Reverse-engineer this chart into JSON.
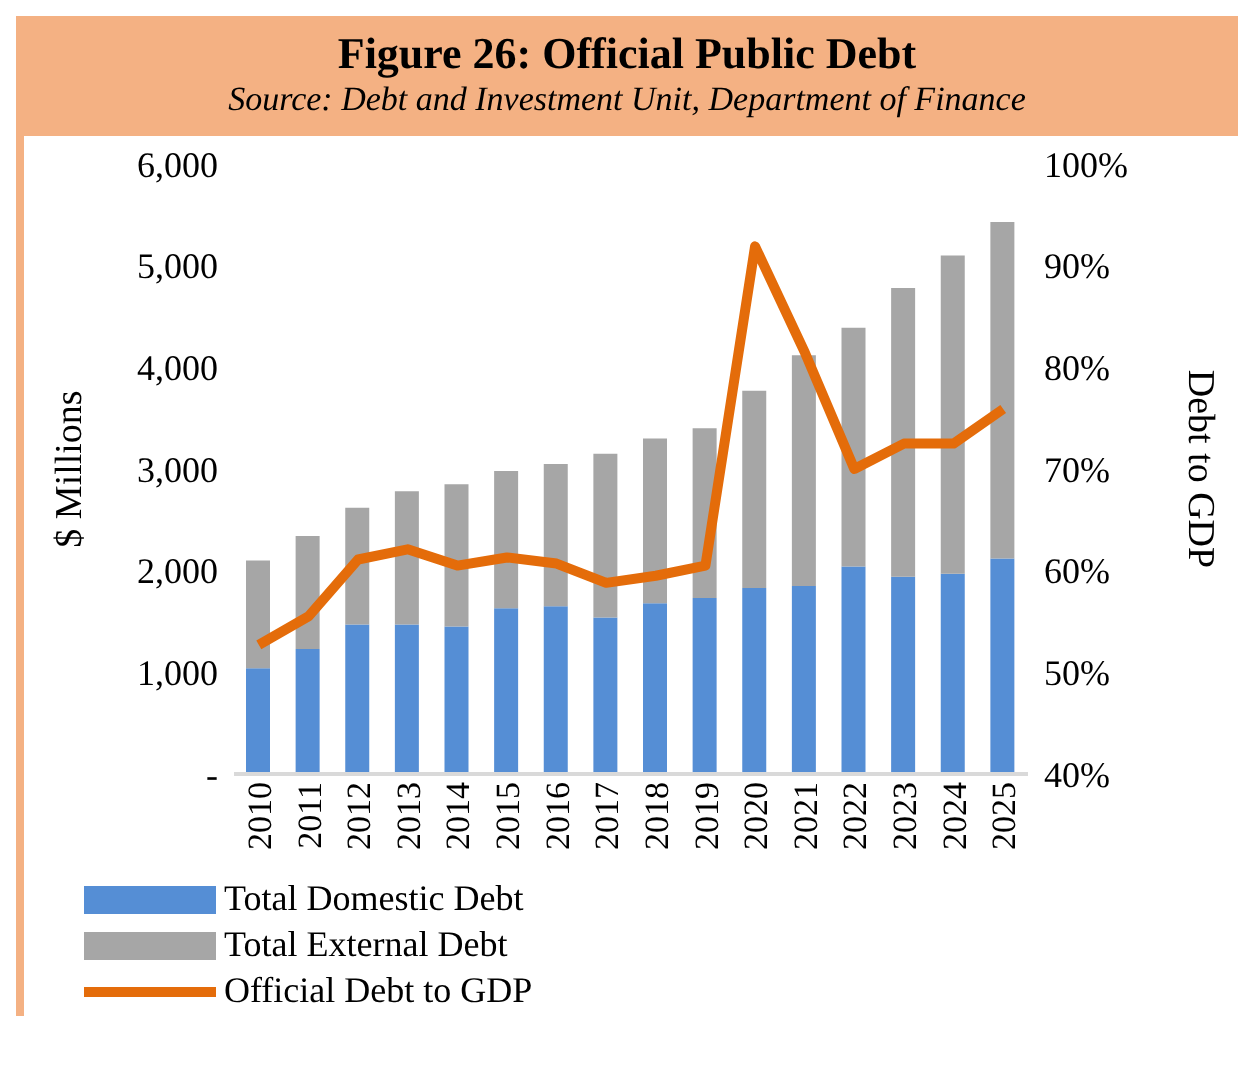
{
  "chart_data": {
    "type": "bar",
    "title": "Figure 26: Official Public Debt",
    "subtitle": "Source: Debt and Investment Unit, Department of Finance",
    "ylabel": "$ Millions",
    "y2label": "Debt to GDP",
    "categories": [
      "2010",
      "2011",
      "2012",
      "2013",
      "2014",
      "2015",
      "2016",
      "2017",
      "2018",
      "2019",
      "2020",
      "2021",
      "2022",
      "2023",
      "2024",
      "2025"
    ],
    "stacked": true,
    "series": [
      {
        "name": "Total Domestic Debt",
        "color": "#558ed5",
        "values": [
          1040,
          1230,
          1470,
          1470,
          1450,
          1630,
          1650,
          1540,
          1680,
          1730,
          1830,
          1850,
          2040,
          1940,
          1970,
          2120
        ]
      },
      {
        "name": "Total External Debt",
        "color": "#a6a6a6",
        "values": [
          1060,
          1110,
          1150,
          1310,
          1400,
          1350,
          1400,
          1610,
          1620,
          1670,
          1940,
          2270,
          2350,
          2840,
          3130,
          3310
        ]
      },
      {
        "name": "Official Debt to GDP",
        "type": "line",
        "axis": "y2",
        "color": "#e46c0a",
        "values": [
          52.7,
          55.5,
          61.1,
          62.1,
          60.5,
          61.3,
          60.7,
          58.8,
          59.5,
          60.5,
          91.9,
          81.5,
          70,
          72.5,
          72.5,
          75.9
        ]
      }
    ],
    "ylim": [
      0,
      6000
    ],
    "yticks": [
      {
        "value": 0,
        "label": "-"
      },
      {
        "value": 1000,
        "label": "1,000"
      },
      {
        "value": 2000,
        "label": "2,000"
      },
      {
        "value": 3000,
        "label": "3,000"
      },
      {
        "value": 4000,
        "label": "4,000"
      },
      {
        "value": 5000,
        "label": "5,000"
      },
      {
        "value": 6000,
        "label": "6,000"
      }
    ],
    "y2lim": [
      40,
      100
    ],
    "y2ticks": [
      {
        "value": 40,
        "label": "40%"
      },
      {
        "value": 50,
        "label": "50%"
      },
      {
        "value": 60,
        "label": "60%"
      },
      {
        "value": 70,
        "label": "70%"
      },
      {
        "value": 80,
        "label": "80%"
      },
      {
        "value": 90,
        "label": "90%"
      },
      {
        "value": 100,
        "label": "100%"
      }
    ],
    "grid": false,
    "legend": "bottom",
    "marker": "none",
    "line_style": "solid"
  }
}
